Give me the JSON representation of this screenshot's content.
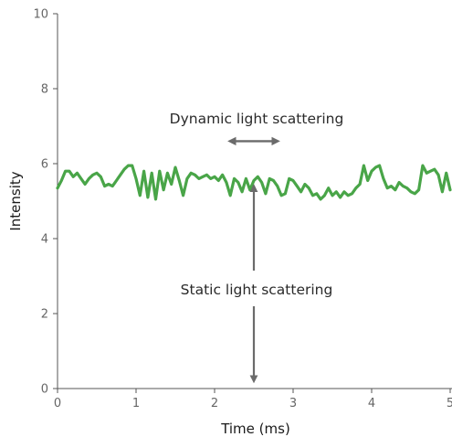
{
  "chart_data": {
    "type": "line",
    "xlabel": "Time (ms)",
    "ylabel": "Intensity",
    "xlim": [
      0,
      5
    ],
    "ylim": [
      0,
      10
    ],
    "x_ticks": [
      "0",
      "1",
      "2",
      "3",
      "4",
      "5"
    ],
    "y_ticks": [
      "0",
      "2",
      "4",
      "6",
      "8",
      "10"
    ],
    "grid": false,
    "series": [
      {
        "color": "#49a548",
        "x": [
          0.0,
          0.05,
          0.1,
          0.15,
          0.2,
          0.25,
          0.3,
          0.35,
          0.4,
          0.45,
          0.5,
          0.55,
          0.6,
          0.65,
          0.7,
          0.75,
          0.8,
          0.85,
          0.9,
          0.95,
          1.0,
          1.05,
          1.1,
          1.15,
          1.2,
          1.25,
          1.3,
          1.35,
          1.4,
          1.45,
          1.5,
          1.55,
          1.6,
          1.65,
          1.7,
          1.75,
          1.8,
          1.85,
          1.9,
          1.95,
          2.0,
          2.05,
          2.1,
          2.15,
          2.2,
          2.25,
          2.3,
          2.35,
          2.4,
          2.45,
          2.5,
          2.55,
          2.6,
          2.65,
          2.7,
          2.75,
          2.8,
          2.85,
          2.9,
          2.95,
          3.0,
          3.05,
          3.1,
          3.15,
          3.2,
          3.25,
          3.3,
          3.35,
          3.4,
          3.45,
          3.5,
          3.55,
          3.6,
          3.65,
          3.7,
          3.75,
          3.8,
          3.85,
          3.9,
          3.95,
          4.0,
          4.05,
          4.1,
          4.15,
          4.2,
          4.25,
          4.3,
          4.35,
          4.4,
          4.45,
          4.5,
          4.55,
          4.6,
          4.65,
          4.7,
          4.75,
          4.8,
          4.85,
          4.9,
          4.95,
          5.0
        ],
        "values": [
          5.35,
          5.55,
          5.8,
          5.8,
          5.65,
          5.75,
          5.6,
          5.45,
          5.6,
          5.7,
          5.75,
          5.65,
          5.4,
          5.45,
          5.4,
          5.55,
          5.7,
          5.85,
          5.95,
          5.95,
          5.6,
          5.15,
          5.8,
          5.1,
          5.75,
          5.05,
          5.8,
          5.3,
          5.75,
          5.45,
          5.9,
          5.55,
          5.15,
          5.6,
          5.75,
          5.7,
          5.6,
          5.65,
          5.7,
          5.6,
          5.65,
          5.55,
          5.7,
          5.5,
          5.15,
          5.6,
          5.5,
          5.25,
          5.6,
          5.3,
          5.55,
          5.65,
          5.5,
          5.2,
          5.6,
          5.55,
          5.4,
          5.15,
          5.2,
          5.6,
          5.55,
          5.4,
          5.25,
          5.45,
          5.35,
          5.15,
          5.2,
          5.05,
          5.15,
          5.35,
          5.15,
          5.25,
          5.1,
          5.25,
          5.15,
          5.2,
          5.35,
          5.45,
          5.95,
          5.55,
          5.8,
          5.9,
          5.95,
          5.6,
          5.35,
          5.4,
          5.3,
          5.5,
          5.4,
          5.35,
          5.25,
          5.2,
          5.3,
          5.95,
          5.75,
          5.8,
          5.85,
          5.7,
          5.25,
          5.75,
          5.3
        ]
      }
    ],
    "annotations": [
      {
        "text": "Dynamic light scattering",
        "arrow": "double-horizontal",
        "x_from": 2.22,
        "x_to": 2.78,
        "y": 6.6
      },
      {
        "text": "Static light scattering",
        "arrow": "vertical",
        "x": 2.5,
        "y_from": 5.45,
        "y_to": 0.1
      }
    ]
  }
}
